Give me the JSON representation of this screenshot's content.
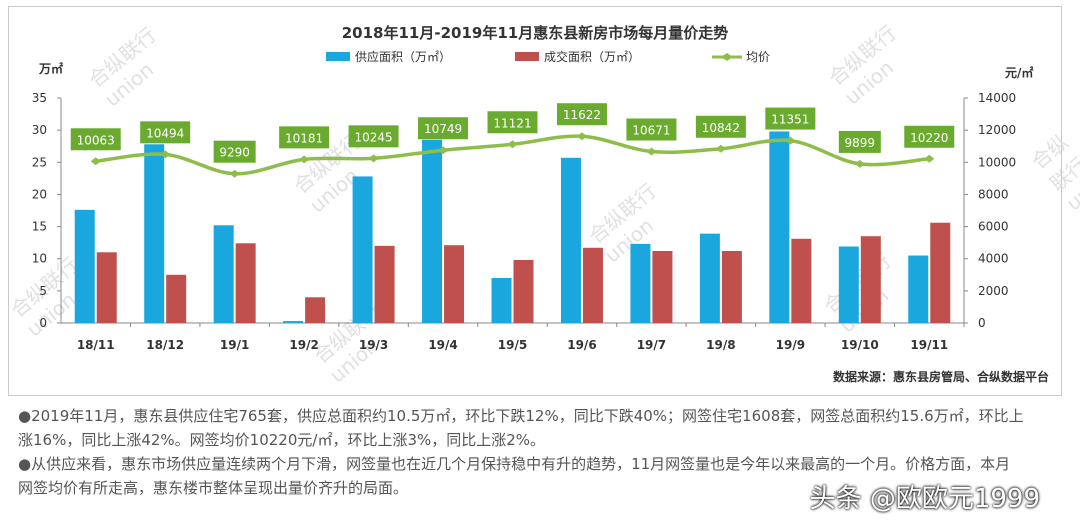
{
  "colors": {
    "supply": "#1aa7de",
    "deal": "#c0504d",
    "price_line": "#8fbd4a",
    "price_label_bg": "#6aaa2e"
  },
  "chart_data": {
    "type": "bar",
    "title": "2018年11月-2019年11月惠东县新房市场每月量价走势",
    "categories": [
      "18/11",
      "18/12",
      "19/1",
      "19/2",
      "19/3",
      "19/4",
      "19/5",
      "19/6",
      "19/7",
      "19/8",
      "19/9",
      "19/10",
      "19/11"
    ],
    "series": [
      {
        "name": "供应面积（万㎡）",
        "type": "bar",
        "axis": "left",
        "values": [
          17.6,
          27.8,
          15.2,
          0.3,
          22.8,
          28.5,
          7.0,
          25.7,
          12.3,
          13.9,
          29.8,
          11.9,
          10.5
        ]
      },
      {
        "name": "成交面积（万㎡）",
        "type": "bar",
        "axis": "left",
        "values": [
          11.0,
          7.5,
          12.4,
          4.0,
          12.0,
          12.1,
          9.8,
          11.7,
          11.2,
          11.2,
          13.1,
          13.5,
          15.6
        ]
      },
      {
        "name": "均价",
        "type": "line",
        "axis": "right",
        "values": [
          10063,
          10494,
          9290,
          10181,
          10245,
          10749,
          11121,
          11622,
          10671,
          10842,
          11351,
          9899,
          10220
        ]
      }
    ],
    "left_axis": {
      "unit": "万㎡",
      "ylim": [
        0,
        35
      ],
      "ticks": [
        "0",
        "5",
        "10",
        "15",
        "20",
        "25",
        "30",
        "35"
      ]
    },
    "right_axis": {
      "unit": "元/㎡",
      "ylim": [
        0,
        14000
      ],
      "ticks": [
        "0",
        "2000",
        "4000",
        "6000",
        "8000",
        "10000",
        "12000",
        "14000"
      ]
    },
    "source": "数据来源：惠东县房管局、合纵数据平台",
    "grid": false,
    "legend_position": "top"
  },
  "watermark": {
    "line1": "合纵联行",
    "line2": "union"
  },
  "paragraphs": [
    "●2019年11月，惠东县供应住宅765套，供应总面积约10.5万㎡，环比下跌12%，同比下跌40%；网签住宅1608套，网签总面积约15.6万㎡，环比上",
    "涨16%，同比上涨42%。网签均价10220元/㎡，环比上涨3%，同比上涨2%。",
    "●从供应来看，惠东市场供应量连续两个月下滑，网签量也在近几个月保持稳中有升的趋势，11月网签量也是今年以来最高的一个月。价格方面，本月",
    "网签均价有所走高，惠东楼市整体呈现出量价齐升的局面。"
  ],
  "footer_watermark": "头条 @欧欧元1999"
}
